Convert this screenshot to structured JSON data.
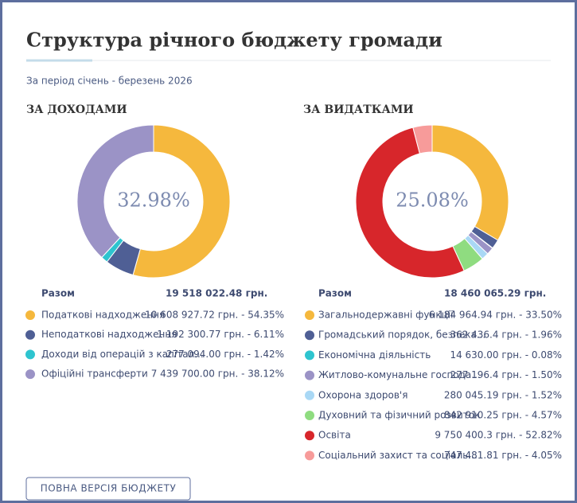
{
  "title": "Структура річного бюджету громади",
  "subtitle": "За період січень - березень 2026",
  "button": "ПОВНА ВЕРСІЯ БЮДЖЕТУ",
  "chart_data": [
    {
      "type": "donut",
      "title": "ЗА ДОХОДАМИ",
      "center_label": "32.98%",
      "total_label": "Разом",
      "total": "19 518 022.48 грн.",
      "categories": [
        "Податкові надходження",
        "Неподаткові надходження",
        "Доходи від операцій з капітал...",
        "Офіційні трансферти"
      ],
      "values": [
        54.35,
        6.11,
        1.42,
        38.12
      ],
      "value_labels": [
        "10 608 927.72 грн. - 54.35%",
        "1 192 300.77 грн. - 6.11%",
        "277 094.00 грн. - 1.42%",
        "7 439 700.00 грн. - 38.12%"
      ],
      "colors": [
        "#f5b83d",
        "#4f5f95",
        "#2ec4cf",
        "#9b93c6"
      ]
    },
    {
      "type": "donut",
      "title": "ЗА ВИДАТКАМИ",
      "center_label": "25.08%",
      "total_label": "Разом",
      "total": "18 460 065.29 грн.",
      "categories": [
        "Загальнодержавні функції",
        "Громадський порядок, безпека...",
        "Економічна діяльність",
        "Житлово-комунальне господа...",
        "Охорона здоров'я",
        "Духовний та фізичний розвиток",
        "Освіта",
        "Соціальний захист та соціаль..."
      ],
      "values": [
        33.5,
        1.96,
        0.08,
        1.5,
        1.52,
        4.57,
        52.82,
        4.05
      ],
      "value_labels": [
        "6 184 964.94 грн. - 33.50%",
        "362 436.4 грн. - 1.96%",
        "14 630.00 грн. - 0.08%",
        "277 196.4 грн. - 1.50%",
        "280 045.19 грн. - 1.52%",
        "842 910.25 грн. - 4.57%",
        "9 750 400.3 грн. - 52.82%",
        "747 481.81 грн. - 4.05%"
      ],
      "colors": [
        "#f5b83d",
        "#4f5f95",
        "#2ec4cf",
        "#9b93c6",
        "#a9d8f5",
        "#8fdc80",
        "#d7262b",
        "#f79b9a"
      ]
    }
  ]
}
